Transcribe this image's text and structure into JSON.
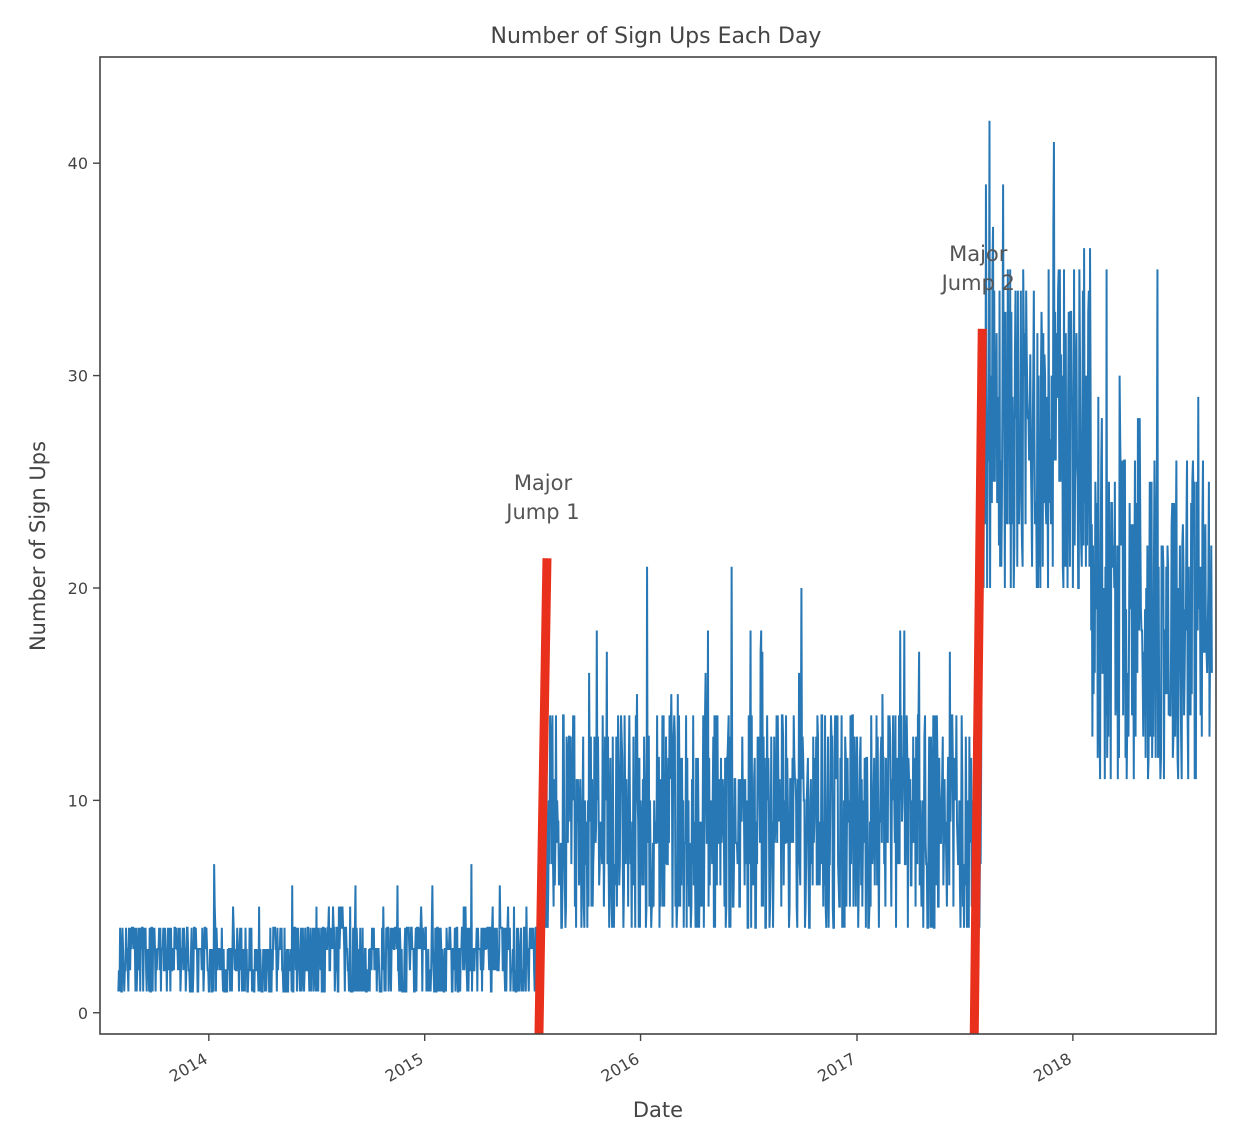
{
  "chart_data": {
    "type": "line",
    "title": "Number of Sign Ups Each Day",
    "xlabel": "Date",
    "ylabel": "Number of Sign Ups",
    "x_range": [
      "2013-07-01",
      "2018-08-31"
    ],
    "ylim": [
      -1,
      45
    ],
    "x_ticks": [
      "2014",
      "2015",
      "2016",
      "2017",
      "2018"
    ],
    "y_ticks": [
      0,
      10,
      20,
      30,
      40
    ],
    "grid": false,
    "legend": "none",
    "series_color": "#2878b5",
    "annotation_color": "#e8301c",
    "series": [
      {
        "start_date": "2013-08-01",
        "end_date": "2018-08-25",
        "segments": [
          {
            "from": "2013-08-01",
            "to": "2015-07-20",
            "min": 1,
            "max": 4,
            "peak": 7
          },
          {
            "from": "2015-07-20",
            "to": "2017-08-01",
            "min": 4,
            "max": 14,
            "peak": 22
          },
          {
            "from": "2017-08-01",
            "to": "2018-02-01",
            "min": 20,
            "max": 35,
            "peak": 43
          },
          {
            "from": "2018-02-01",
            "to": "2018-08-25",
            "min": 11,
            "max": 26,
            "peak": 35
          }
        ]
      }
    ],
    "annotations": [
      {
        "id": "jump1",
        "label_line1": "Major",
        "label_line2": "Jump 1",
        "date": "2015-07-20",
        "y_bottom": -1,
        "y_top": 21.4
      },
      {
        "id": "jump2",
        "label_line1": "Major",
        "label_line2": "Jump 2",
        "date": "2017-07-25",
        "y_bottom": -1,
        "y_top": 32.2
      }
    ]
  }
}
